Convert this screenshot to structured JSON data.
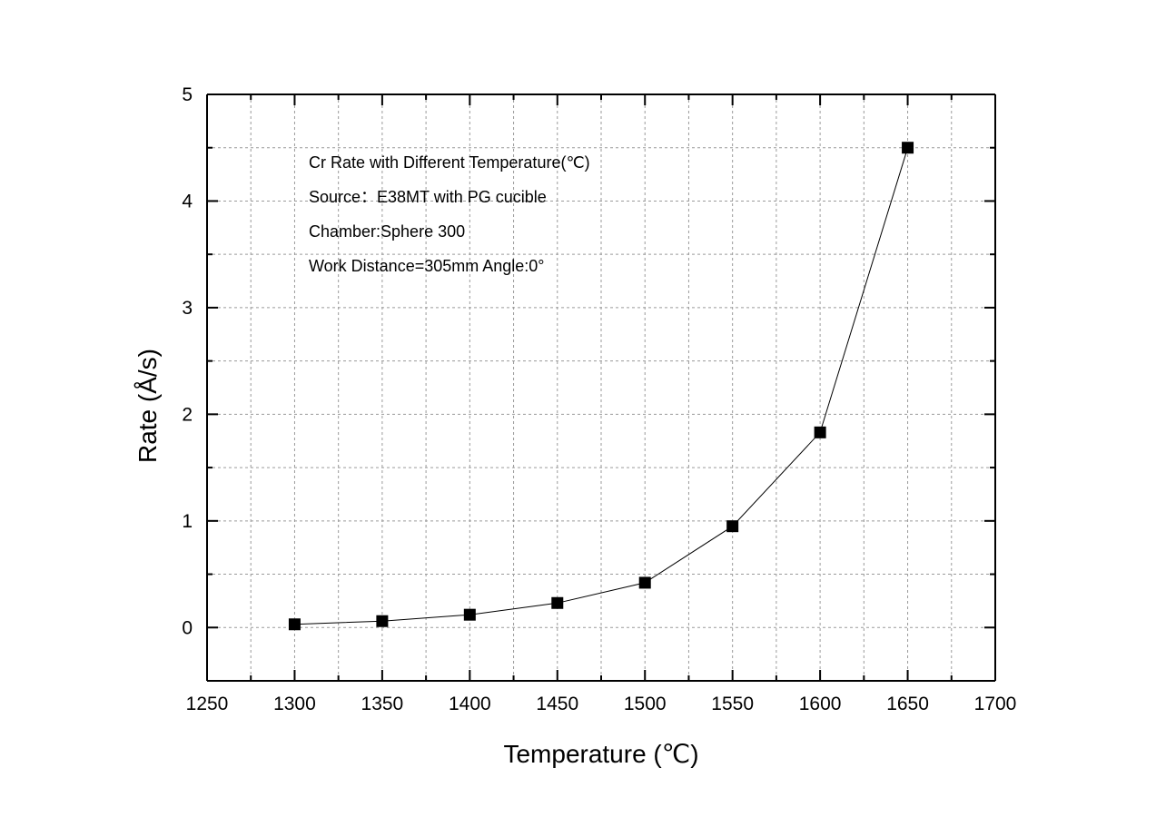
{
  "chart_data": {
    "type": "line",
    "xlabel": "Temperature (℃)",
    "ylabel": "Rate (Å/s)",
    "xlim": [
      1250,
      1700
    ],
    "ylim": [
      -0.5,
      5
    ],
    "x_ticks": [
      1250,
      1300,
      1350,
      1400,
      1450,
      1500,
      1550,
      1600,
      1650,
      1700
    ],
    "y_ticks": [
      0,
      1,
      2,
      3,
      4,
      5
    ],
    "x_tick_labels": [
      "1250",
      "1300",
      "1350",
      "1400",
      "1450",
      "1500",
      "1550",
      "1600",
      "1650",
      "1700"
    ],
    "y_tick_labels": [
      "0",
      "1",
      "2",
      "3",
      "4",
      "5"
    ],
    "grid": true,
    "series": [
      {
        "x": [
          1300,
          1350,
          1400,
          1450,
          1500,
          1550,
          1600,
          1650
        ],
        "values": [
          0.03,
          0.06,
          0.12,
          0.23,
          0.42,
          0.95,
          1.83,
          4.5
        ],
        "marker": "square",
        "color": "#000000"
      }
    ],
    "annotations": [
      "Cr Rate with Different Temperature(℃)",
      "Source：E38MT with PG cucible",
      "Chamber:Sphere 300",
      "Work Distance=305mm  Angle:0°"
    ]
  }
}
